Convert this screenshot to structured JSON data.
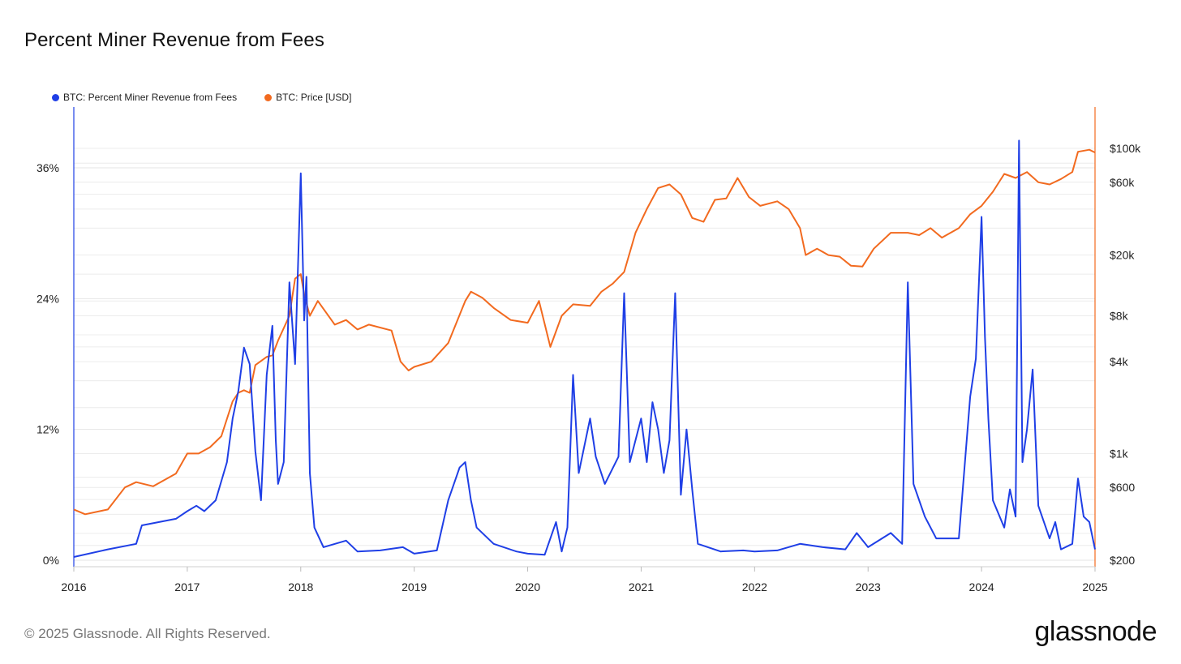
{
  "title": "Percent Miner Revenue from Fees",
  "footer": "© 2025 Glassnode. All Rights Reserved.",
  "brand": "glassnode",
  "colors": {
    "fees": "#1f3fe6",
    "price": "#f26a1f",
    "grid": "#ececec"
  },
  "chart_data": {
    "type": "line",
    "title": "Percent Miner Revenue from Fees",
    "legend_position": "top-left",
    "grid": true,
    "x_ticks": [
      "2016",
      "2017",
      "2018",
      "2019",
      "2020",
      "2021",
      "2022",
      "2023",
      "2024",
      "2025"
    ],
    "x_range": [
      2016,
      2025
    ],
    "y_left": {
      "ticks": [
        "0%",
        "12%",
        "24%",
        "36%"
      ],
      "range": [
        0,
        36
      ]
    },
    "y_right": {
      "scale": "log",
      "ticks": [
        "$100k",
        "$60k",
        "$20k",
        "$8k",
        "$4k",
        "$1k",
        "$600",
        "$200"
      ],
      "range": [
        200,
        100000
      ]
    },
    "series": [
      {
        "name": "BTC: Percent Miner Revenue from Fees",
        "axis": "left",
        "points": [
          [
            2016.0,
            0.3
          ],
          [
            2016.3,
            1.0
          ],
          [
            2016.55,
            1.5
          ],
          [
            2016.6,
            3.2
          ],
          [
            2016.9,
            3.8
          ],
          [
            2017.0,
            4.5
          ],
          [
            2017.08,
            5.0
          ],
          [
            2017.15,
            4.5
          ],
          [
            2017.25,
            5.5
          ],
          [
            2017.35,
            9.0
          ],
          [
            2017.4,
            13.0
          ],
          [
            2017.45,
            15.5
          ],
          [
            2017.5,
            19.5
          ],
          [
            2017.55,
            18.0
          ],
          [
            2017.6,
            10.0
          ],
          [
            2017.65,
            5.5
          ],
          [
            2017.7,
            17.0
          ],
          [
            2017.75,
            21.5
          ],
          [
            2017.78,
            11.0
          ],
          [
            2017.8,
            7.0
          ],
          [
            2017.85,
            9.0
          ],
          [
            2017.9,
            25.5
          ],
          [
            2017.95,
            18.0
          ],
          [
            2018.0,
            35.5
          ],
          [
            2018.03,
            22.0
          ],
          [
            2018.05,
            26.0
          ],
          [
            2018.08,
            8.0
          ],
          [
            2018.12,
            3.0
          ],
          [
            2018.2,
            1.2
          ],
          [
            2018.4,
            1.8
          ],
          [
            2018.5,
            0.8
          ],
          [
            2018.7,
            0.9
          ],
          [
            2018.9,
            1.2
          ],
          [
            2019.0,
            0.6
          ],
          [
            2019.2,
            0.9
          ],
          [
            2019.3,
            5.5
          ],
          [
            2019.4,
            8.5
          ],
          [
            2019.45,
            9.0
          ],
          [
            2019.5,
            5.5
          ],
          [
            2019.55,
            3.0
          ],
          [
            2019.7,
            1.5
          ],
          [
            2019.9,
            0.8
          ],
          [
            2020.0,
            0.6
          ],
          [
            2020.15,
            0.5
          ],
          [
            2020.25,
            3.5
          ],
          [
            2020.3,
            0.8
          ],
          [
            2020.35,
            3.0
          ],
          [
            2020.4,
            17.0
          ],
          [
            2020.45,
            8.0
          ],
          [
            2020.55,
            13.0
          ],
          [
            2020.6,
            9.5
          ],
          [
            2020.68,
            7.0
          ],
          [
            2020.8,
            9.5
          ],
          [
            2020.85,
            24.5
          ],
          [
            2020.9,
            9.0
          ],
          [
            2021.0,
            13.0
          ],
          [
            2021.05,
            9.0
          ],
          [
            2021.1,
            14.5
          ],
          [
            2021.15,
            12.0
          ],
          [
            2021.2,
            8.0
          ],
          [
            2021.25,
            11.0
          ],
          [
            2021.3,
            24.5
          ],
          [
            2021.35,
            6.0
          ],
          [
            2021.4,
            12.0
          ],
          [
            2021.45,
            6.5
          ],
          [
            2021.5,
            1.5
          ],
          [
            2021.7,
            0.8
          ],
          [
            2021.9,
            0.9
          ],
          [
            2022.0,
            0.8
          ],
          [
            2022.2,
            0.9
          ],
          [
            2022.4,
            1.5
          ],
          [
            2022.6,
            1.2
          ],
          [
            2022.8,
            1.0
          ],
          [
            2022.9,
            2.5
          ],
          [
            2023.0,
            1.2
          ],
          [
            2023.2,
            2.5
          ],
          [
            2023.3,
            1.5
          ],
          [
            2023.35,
            25.5
          ],
          [
            2023.4,
            7.0
          ],
          [
            2023.5,
            4.0
          ],
          [
            2023.6,
            2.0
          ],
          [
            2023.8,
            2.0
          ],
          [
            2023.9,
            15.0
          ],
          [
            2023.95,
            18.5
          ],
          [
            2024.0,
            31.5
          ],
          [
            2024.03,
            20.5
          ],
          [
            2024.06,
            13.0
          ],
          [
            2024.1,
            5.5
          ],
          [
            2024.2,
            3.0
          ],
          [
            2024.25,
            6.5
          ],
          [
            2024.3,
            4.0
          ],
          [
            2024.33,
            38.5
          ],
          [
            2024.36,
            9.0
          ],
          [
            2024.4,
            12.0
          ],
          [
            2024.45,
            17.5
          ],
          [
            2024.5,
            5.0
          ],
          [
            2024.6,
            2.0
          ],
          [
            2024.65,
            3.5
          ],
          [
            2024.7,
            1.0
          ],
          [
            2024.8,
            1.5
          ],
          [
            2024.85,
            7.5
          ],
          [
            2024.9,
            4.0
          ],
          [
            2024.95,
            3.5
          ],
          [
            2025.0,
            1.0
          ]
        ]
      },
      {
        "name": "BTC: Price [USD]",
        "axis": "right",
        "points": [
          [
            2016.0,
            430
          ],
          [
            2016.1,
            400
          ],
          [
            2016.3,
            430
          ],
          [
            2016.45,
            600
          ],
          [
            2016.55,
            650
          ],
          [
            2016.7,
            610
          ],
          [
            2016.9,
            740
          ],
          [
            2017.0,
            1000
          ],
          [
            2017.1,
            1000
          ],
          [
            2017.2,
            1100
          ],
          [
            2017.3,
            1300
          ],
          [
            2017.4,
            2200
          ],
          [
            2017.45,
            2500
          ],
          [
            2017.5,
            2600
          ],
          [
            2017.55,
            2500
          ],
          [
            2017.6,
            3800
          ],
          [
            2017.7,
            4300
          ],
          [
            2017.75,
            4400
          ],
          [
            2017.8,
            5500
          ],
          [
            2017.9,
            8000
          ],
          [
            2017.95,
            14000
          ],
          [
            2018.0,
            15000
          ],
          [
            2018.03,
            11000
          ],
          [
            2018.08,
            8000
          ],
          [
            2018.15,
            10000
          ],
          [
            2018.3,
            7000
          ],
          [
            2018.4,
            7500
          ],
          [
            2018.5,
            6500
          ],
          [
            2018.6,
            7000
          ],
          [
            2018.8,
            6400
          ],
          [
            2018.88,
            4000
          ],
          [
            2018.95,
            3500
          ],
          [
            2019.0,
            3700
          ],
          [
            2019.15,
            4000
          ],
          [
            2019.3,
            5300
          ],
          [
            2019.45,
            10000
          ],
          [
            2019.5,
            11500
          ],
          [
            2019.6,
            10500
          ],
          [
            2019.7,
            9000
          ],
          [
            2019.85,
            7500
          ],
          [
            2020.0,
            7200
          ],
          [
            2020.1,
            10000
          ],
          [
            2020.2,
            5000
          ],
          [
            2020.3,
            8000
          ],
          [
            2020.4,
            9500
          ],
          [
            2020.55,
            9300
          ],
          [
            2020.65,
            11500
          ],
          [
            2020.75,
            13000
          ],
          [
            2020.85,
            15500
          ],
          [
            2020.95,
            28000
          ],
          [
            2021.05,
            40000
          ],
          [
            2021.15,
            55000
          ],
          [
            2021.25,
            58000
          ],
          [
            2021.35,
            50000
          ],
          [
            2021.45,
            35000
          ],
          [
            2021.55,
            33000
          ],
          [
            2021.65,
            46000
          ],
          [
            2021.75,
            47000
          ],
          [
            2021.85,
            64000
          ],
          [
            2021.95,
            48000
          ],
          [
            2022.05,
            42000
          ],
          [
            2022.2,
            45000
          ],
          [
            2022.3,
            40000
          ],
          [
            2022.4,
            30000
          ],
          [
            2022.45,
            20000
          ],
          [
            2022.55,
            22000
          ],
          [
            2022.65,
            20000
          ],
          [
            2022.75,
            19500
          ],
          [
            2022.85,
            17000
          ],
          [
            2022.95,
            16800
          ],
          [
            2023.05,
            22000
          ],
          [
            2023.2,
            28000
          ],
          [
            2023.35,
            28000
          ],
          [
            2023.45,
            27000
          ],
          [
            2023.55,
            30000
          ],
          [
            2023.65,
            26000
          ],
          [
            2023.8,
            30000
          ],
          [
            2023.9,
            37000
          ],
          [
            2024.0,
            42000
          ],
          [
            2024.1,
            52000
          ],
          [
            2024.2,
            68000
          ],
          [
            2024.3,
            64000
          ],
          [
            2024.4,
            70000
          ],
          [
            2024.5,
            60000
          ],
          [
            2024.6,
            58000
          ],
          [
            2024.7,
            63000
          ],
          [
            2024.8,
            70000
          ],
          [
            2024.85,
            95000
          ],
          [
            2024.95,
            98000
          ],
          [
            2025.0,
            94000
          ]
        ]
      }
    ]
  }
}
